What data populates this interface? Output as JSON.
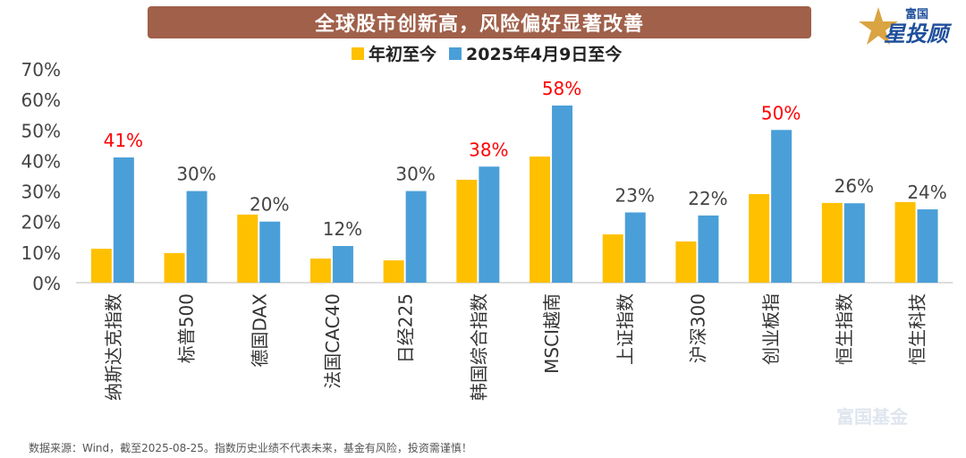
{
  "header": {
    "title": "全球股市创新高，风险偏好显著改善",
    "logo_text_small": "富国",
    "logo_text_large": "星投顾"
  },
  "footnote": "数据来源：Wind，截至2025-08-25。指数历史业绩不代表未来，基金有风险，投资需谨慎！",
  "watermark": "富国基金",
  "chart_data": {
    "type": "bar",
    "categories": [
      "纳斯达克指数",
      "标普500",
      "德国DAX",
      "法国CAC40",
      "日经225",
      "韩国综合指数",
      "MSCI越南",
      "上证指数",
      "沪深300",
      "创业板指",
      "恒生指数",
      "恒生科技"
    ],
    "series": [
      {
        "name": "年初至今",
        "color": "#ffc000",
        "values": [
          11.1,
          9.7,
          22.3,
          7.9,
          7.3,
          33.7,
          41.3,
          15.8,
          13.5,
          29.0,
          26.1,
          26.4
        ]
      },
      {
        "name": "2025年4月9日至今",
        "color": "#4a9fd8",
        "values": [
          41,
          30,
          20,
          12,
          30,
          38,
          58,
          23,
          22,
          50,
          26,
          24
        ]
      }
    ],
    "data_labels": [
      "41%",
      "30%",
      "20%",
      "12%",
      "30%",
      "38%",
      "58%",
      "23%",
      "22%",
      "50%",
      "26%",
      "24%"
    ],
    "highlight_labels": [
      0,
      5,
      6,
      9
    ],
    "highlight_color": "#ff0000",
    "yticks": [
      "0%",
      "10%",
      "20%",
      "30%",
      "40%",
      "50%",
      "60%",
      "70%"
    ],
    "ylim": [
      0,
      70
    ],
    "grid": false,
    "legend": "top"
  }
}
